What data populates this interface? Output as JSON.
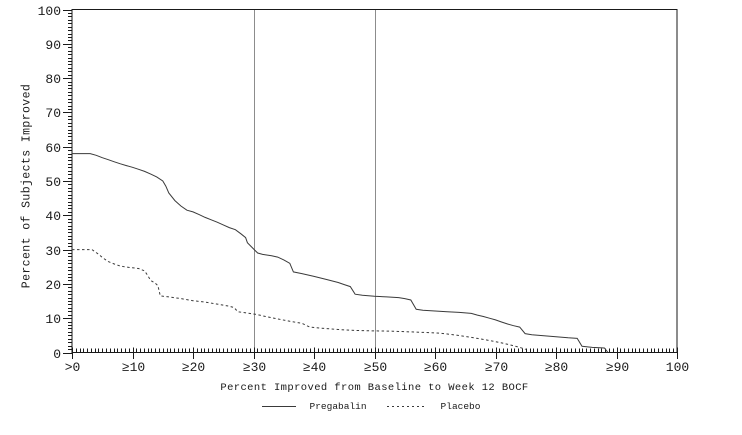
{
  "chart_data": {
    "type": "line",
    "title": "",
    "xlabel": "Percent Improved from Baseline to Week 12 BOCF",
    "ylabel": "Percent of Subjects Improved",
    "xlim": [
      0,
      100
    ],
    "ylim": [
      0,
      100
    ],
    "grid": false,
    "legend_position": "bottom",
    "x_minor_divisions": 16,
    "y_minor_divisions": 10,
    "reference_lines_x": [
      30,
      50
    ],
    "colors": {
      "curve": "#3a3a3a",
      "axis": "#1a1a1a",
      "reference_line": "#8c8c8c",
      "background": "#ffffff"
    },
    "x_ticks": [
      {
        "value": 0,
        "label": ">0"
      },
      {
        "value": 10,
        "label": "≥10"
      },
      {
        "value": 20,
        "label": "≥20"
      },
      {
        "value": 30,
        "label": "≥30"
      },
      {
        "value": 40,
        "label": "≥40"
      },
      {
        "value": 50,
        "label": "≥50"
      },
      {
        "value": 60,
        "label": "≥60"
      },
      {
        "value": 70,
        "label": "≥70"
      },
      {
        "value": 80,
        "label": "≥80"
      },
      {
        "value": 90,
        "label": "≥90"
      },
      {
        "value": 100,
        "label": "100"
      }
    ],
    "y_ticks": [
      {
        "value": 0,
        "label": "0"
      },
      {
        "value": 10,
        "label": "10"
      },
      {
        "value": 20,
        "label": "20"
      },
      {
        "value": 30,
        "label": "30"
      },
      {
        "value": 40,
        "label": "40"
      },
      {
        "value": 50,
        "label": "50"
      },
      {
        "value": 60,
        "label": "60"
      },
      {
        "value": 70,
        "label": "70"
      },
      {
        "value": 80,
        "label": "80"
      },
      {
        "value": 90,
        "label": "90"
      },
      {
        "value": 100,
        "label": "100"
      }
    ],
    "series": [
      {
        "name": "Pregabalin",
        "style": "solid",
        "color": "#3a3a3a",
        "points": [
          [
            0,
            58
          ],
          [
            3,
            58
          ],
          [
            4,
            57.5
          ],
          [
            5,
            56.8
          ],
          [
            6,
            56.2
          ],
          [
            7,
            55.6
          ],
          [
            8,
            55
          ],
          [
            9,
            54.5
          ],
          [
            10,
            54
          ],
          [
            11,
            53.4
          ],
          [
            12,
            52.8
          ],
          [
            13,
            52
          ],
          [
            14,
            51.2
          ],
          [
            15,
            50
          ],
          [
            15.5,
            48.5
          ],
          [
            16,
            46.5
          ],
          [
            17,
            44.3
          ],
          [
            18,
            42.7
          ],
          [
            19,
            41.5
          ],
          [
            20,
            41
          ],
          [
            21,
            40.2
          ],
          [
            22,
            39.4
          ],
          [
            23,
            38.7
          ],
          [
            24,
            38
          ],
          [
            25,
            37.2
          ],
          [
            26,
            36.4
          ],
          [
            27,
            35.8
          ],
          [
            28,
            34.5
          ],
          [
            28.7,
            33.5
          ],
          [
            29,
            32
          ],
          [
            30,
            30.2
          ],
          [
            30.7,
            29
          ],
          [
            31.5,
            28.6
          ],
          [
            33,
            28.2
          ],
          [
            34,
            27.8
          ],
          [
            35,
            27
          ],
          [
            36,
            26
          ],
          [
            36.6,
            23.5
          ],
          [
            38,
            23
          ],
          [
            40,
            22.2
          ],
          [
            42,
            21.3
          ],
          [
            44,
            20.4
          ],
          [
            45,
            19.8
          ],
          [
            46,
            19.2
          ],
          [
            46.8,
            17
          ],
          [
            48,
            16.7
          ],
          [
            50,
            16.4
          ],
          [
            52,
            16.2
          ],
          [
            54,
            16
          ],
          [
            55,
            15.7
          ],
          [
            56,
            15.3
          ],
          [
            56.9,
            12.6
          ],
          [
            58,
            12.3
          ],
          [
            60,
            12.1
          ],
          [
            62,
            11.9
          ],
          [
            64,
            11.7
          ],
          [
            66,
            11.4
          ],
          [
            67,
            10.9
          ],
          [
            68,
            10.5
          ],
          [
            69,
            10
          ],
          [
            70,
            9.5
          ],
          [
            71,
            8.9
          ],
          [
            72,
            8.3
          ],
          [
            73,
            7.8
          ],
          [
            74,
            7.4
          ],
          [
            74.9,
            5.5
          ],
          [
            76,
            5.2
          ],
          [
            78,
            4.9
          ],
          [
            80,
            4.6
          ],
          [
            82,
            4.3
          ],
          [
            83.5,
            4.1
          ],
          [
            84.3,
            1.8
          ],
          [
            86,
            1.5
          ],
          [
            88,
            1.3
          ],
          [
            88.6,
            0
          ]
        ]
      },
      {
        "name": "Placebo",
        "style": "dashed",
        "color": "#3a3a3a",
        "points": [
          [
            0,
            30
          ],
          [
            3.3,
            30
          ],
          [
            4.5,
            28.5
          ],
          [
            5,
            27.7
          ],
          [
            6,
            26.5
          ],
          [
            7,
            25.8
          ],
          [
            8,
            25.2
          ],
          [
            9,
            24.9
          ],
          [
            10,
            24.7
          ],
          [
            11,
            24.5
          ],
          [
            12,
            23.8
          ],
          [
            12.5,
            22.5
          ],
          [
            13,
            21
          ],
          [
            13.7,
            20.3
          ],
          [
            14.2,
            19.5
          ],
          [
            14.6,
            16.5
          ],
          [
            16,
            16.2
          ],
          [
            18,
            15.7
          ],
          [
            20,
            15.1
          ],
          [
            22,
            14.7
          ],
          [
            24,
            14.1
          ],
          [
            26,
            13.5
          ],
          [
            26.8,
            13.1
          ],
          [
            27.4,
            11.9
          ],
          [
            29,
            11.5
          ],
          [
            30.5,
            11.1
          ],
          [
            32,
            10.5
          ],
          [
            34,
            9.8
          ],
          [
            36,
            9.1
          ],
          [
            38,
            8.5
          ],
          [
            39.3,
            7.4
          ],
          [
            41,
            7.1
          ],
          [
            44,
            6.7
          ],
          [
            47,
            6.4
          ],
          [
            50,
            6.3
          ],
          [
            53,
            6.2
          ],
          [
            56,
            6
          ],
          [
            59,
            5.8
          ],
          [
            61,
            5.6
          ],
          [
            63,
            5.2
          ],
          [
            65,
            4.7
          ],
          [
            67,
            4.1
          ],
          [
            69,
            3.5
          ],
          [
            71,
            2.8
          ],
          [
            72.5,
            2.2
          ],
          [
            74,
            1.5
          ],
          [
            75,
            0.9
          ]
        ]
      }
    ]
  }
}
